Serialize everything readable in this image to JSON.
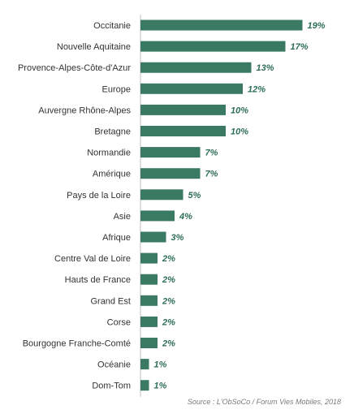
{
  "chart_data": {
    "type": "bar",
    "orientation": "horizontal",
    "categories": [
      "Occitanie",
      "Nouvelle Aquitaine",
      "Provence-Alpes-Côte-d'Azur",
      "Europe",
      "Auvergne Rhône-Alpes",
      "Bretagne",
      "Normandie",
      "Amérique",
      "Pays de la Loire",
      "Asie",
      "Afrique",
      "Centre Val de Loire",
      "Hauts de France",
      "Grand Est",
      "Corse",
      "Bourgogne Franche-Comté",
      "Océanie",
      "Dom-Tom"
    ],
    "values": [
      19,
      17,
      13,
      12,
      10,
      10,
      7,
      7,
      5,
      4,
      3,
      2,
      2,
      2,
      2,
      2,
      1,
      1
    ],
    "value_labels": [
      "19%",
      "17%",
      "13%",
      "12%",
      "10%",
      "10%",
      "7%",
      "7%",
      "5%",
      "4%",
      "3%",
      "2%",
      "2%",
      "2%",
      "2%",
      "2%",
      "1%",
      "1%"
    ],
    "xlim": [
      0,
      20
    ],
    "grid": false,
    "bar_color": "#3a7a63",
    "label_color": "#2e6e59"
  },
  "source": "Source : L'ObSoCo / Forum Vies Mobiles, 2018"
}
